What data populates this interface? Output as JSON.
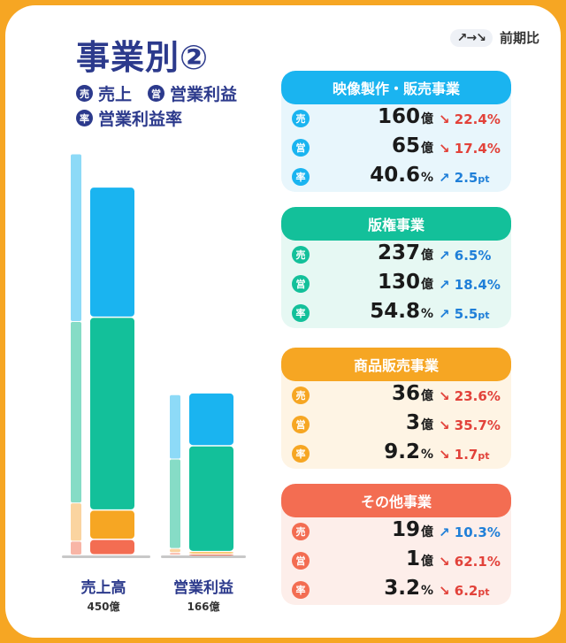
{
  "title": "事業別②",
  "legend": {
    "sales_mark": "売",
    "sales_label": "売上",
    "op_mark": "営",
    "op_label": "営業利益",
    "rate_mark": "率",
    "rate_label": "営業利益率"
  },
  "compare": {
    "arrows": "↗→↘",
    "label": "前期比"
  },
  "chart_data": {
    "type": "bar",
    "categories": [
      "売上高",
      "営業利益"
    ],
    "totals_label": [
      "450億",
      "166億"
    ],
    "series": [
      {
        "name": "映像製作・販売事業",
        "values": [
          160,
          65
        ]
      },
      {
        "name": "版権事業",
        "values": [
          237,
          130
        ]
      },
      {
        "name": "商品販売事業",
        "values": [
          36,
          3
        ]
      },
      {
        "name": "その他事業",
        "values": [
          19,
          1
        ]
      }
    ],
    "previous_period": [
      {
        "name": "映像製作・販売事業",
        "values": [
          206,
          79
        ]
      },
      {
        "name": "版権事業",
        "values": [
          223,
          110
        ]
      },
      {
        "name": "商品販売事業",
        "values": [
          47,
          5
        ]
      },
      {
        "name": "その他事業",
        "values": [
          17,
          3
        ]
      }
    ],
    "colors": [
      "#1ab4f0",
      "#13c09a",
      "#f6a623",
      "#f36d52"
    ],
    "prev_colors": [
      "#8ddaf7",
      "#86dcc6",
      "#fad4a0",
      "#f8b5a6"
    ],
    "ylim": [
      0,
      500
    ]
  },
  "segments": [
    {
      "name": "映像製作・販売事業",
      "color": "#1ab4f0",
      "bg": "#e8f6fc",
      "rows": [
        {
          "mark": "売",
          "value": "160",
          "unit": "億",
          "arrow": "↘",
          "change": "22.4",
          "cunit": "%",
          "dir": "down"
        },
        {
          "mark": "営",
          "value": "65",
          "unit": "億",
          "arrow": "↘",
          "change": "17.4",
          "cunit": "%",
          "dir": "down"
        },
        {
          "mark": "率",
          "value": "40.6",
          "unit": "%",
          "arrow": "↗",
          "change": "2.5",
          "cunit": "pt",
          "dir": "up"
        }
      ]
    },
    {
      "name": "版権事業",
      "color": "#13c09a",
      "bg": "#e6f8f3",
      "rows": [
        {
          "mark": "売",
          "value": "237",
          "unit": "億",
          "arrow": "↗",
          "change": "6.5",
          "cunit": "%",
          "dir": "up"
        },
        {
          "mark": "営",
          "value": "130",
          "unit": "億",
          "arrow": "↗",
          "change": "18.4",
          "cunit": "%",
          "dir": "up"
        },
        {
          "mark": "率",
          "value": "54.8",
          "unit": "%",
          "arrow": "↗",
          "change": "5.5",
          "cunit": "pt",
          "dir": "up"
        }
      ]
    },
    {
      "name": "商品販売事業",
      "color": "#f6a623",
      "bg": "#fef4e4",
      "rows": [
        {
          "mark": "売",
          "value": "36",
          "unit": "億",
          "arrow": "↘",
          "change": "23.6",
          "cunit": "%",
          "dir": "down"
        },
        {
          "mark": "営",
          "value": "3",
          "unit": "億",
          "arrow": "↘",
          "change": "35.7",
          "cunit": "%",
          "dir": "down"
        },
        {
          "mark": "率",
          "value": "9.2",
          "unit": "%",
          "arrow": "↘",
          "change": "1.7",
          "cunit": "pt",
          "dir": "down"
        }
      ]
    },
    {
      "name": "その他事業",
      "color": "#f36d52",
      "bg": "#fdeeea",
      "rows": [
        {
          "mark": "売",
          "value": "19",
          "unit": "億",
          "arrow": "↗",
          "change": "10.3",
          "cunit": "%",
          "dir": "up"
        },
        {
          "mark": "営",
          "value": "1",
          "unit": "億",
          "arrow": "↘",
          "change": "62.1",
          "cunit": "%",
          "dir": "down"
        },
        {
          "mark": "率",
          "value": "3.2",
          "unit": "%",
          "arrow": "↘",
          "change": "6.2",
          "cunit": "pt",
          "dir": "down"
        }
      ]
    }
  ]
}
